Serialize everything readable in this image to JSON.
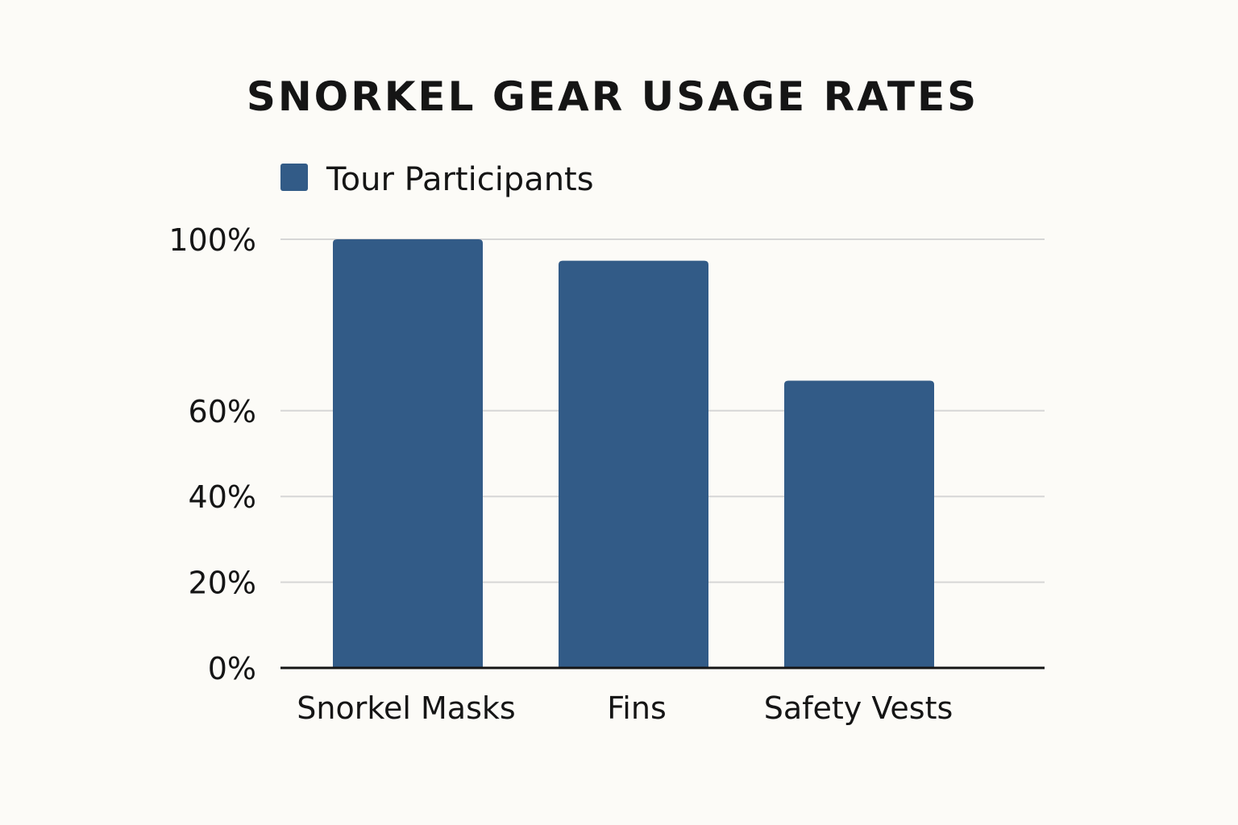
{
  "chart_data": {
    "type": "bar",
    "title": "SNORKEL GEAR USAGE RATES",
    "categories": [
      "Snorkel Masks",
      "Fins",
      "Safety Vests"
    ],
    "series": [
      {
        "name": "Tour Participants",
        "values": [
          100,
          95,
          67
        ],
        "color": "#325b87"
      }
    ],
    "yticks": [
      {
        "value": 0,
        "label": "0%"
      },
      {
        "value": 20,
        "label": "20%"
      },
      {
        "value": 40,
        "label": "40%"
      },
      {
        "value": 60,
        "label": "60%"
      },
      {
        "value": 100,
        "label": "100%"
      }
    ],
    "ylim": [
      0,
      100
    ],
    "xlabel": "",
    "ylabel": "",
    "grid": true,
    "legend_position": "top-left"
  }
}
